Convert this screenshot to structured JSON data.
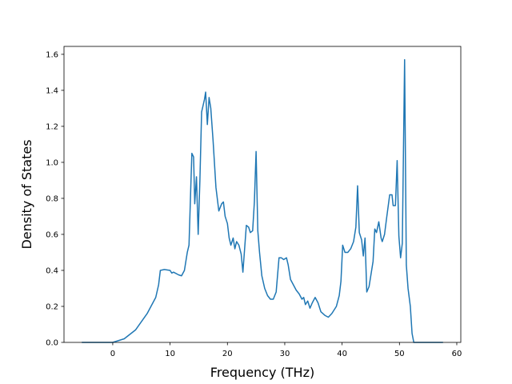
{
  "chart_data": {
    "type": "line",
    "xlabel": "Frequency (THz)",
    "ylabel": "Density of States",
    "xlim": [
      -8.5,
      60.7
    ],
    "ylim": [
      0,
      1.644
    ],
    "xticks": [
      0,
      10,
      20,
      30,
      40,
      50,
      60
    ],
    "yticks": [
      {
        "value": 0,
        "label": "0.0"
      },
      0.2,
      0.4,
      0.6,
      0.8,
      {
        "value": 1,
        "label": "1.0"
      },
      1.2,
      1.4,
      1.6
    ],
    "series": [
      {
        "color": "#1f77b4",
        "x": [
          -5.4,
          0,
          2,
          4,
          6,
          7,
          7.5,
          8,
          8.3,
          9,
          10,
          10.3,
          10.6,
          11.5,
          12,
          12.5,
          13,
          13.3,
          13.6,
          13.8,
          14.1,
          14.3,
          14.6,
          14.9,
          15.2,
          15.5,
          16,
          16.2,
          16.5,
          16.8,
          17.1,
          17.5,
          18,
          18.5,
          19,
          19.3,
          19.6,
          20,
          20.3,
          20.6,
          21,
          21.3,
          21.6,
          22,
          22.4,
          22.7,
          23,
          23.3,
          23.7,
          24,
          24.4,
          24.7,
          25,
          25.3,
          25.6,
          26,
          26.5,
          27,
          27.5,
          28,
          28.5,
          29,
          29.4,
          29.8,
          30.3,
          30.6,
          31,
          31.5,
          32,
          32.5,
          33,
          33.3,
          33.6,
          34,
          34.4,
          34.8,
          35.3,
          35.8,
          36.3,
          37,
          37.6,
          38.2,
          38.6,
          39,
          39.5,
          39.8,
          40.1,
          40.5,
          41,
          41.5,
          42,
          42.4,
          42.7,
          43,
          43.4,
          43.7,
          44,
          44.3,
          44.7,
          45,
          45.4,
          45.7,
          46,
          46.4,
          46.8,
          47,
          47.4,
          47.8,
          48.3,
          48.7,
          48.9,
          49.3,
          49.6,
          49.9,
          50.2,
          50.5,
          50.9,
          51.2,
          51.5,
          51.9,
          52.2,
          52.5,
          57.6
        ],
        "values": [
          0,
          0,
          0.02,
          0.07,
          0.16,
          0.22,
          0.25,
          0.32,
          0.4,
          0.405,
          0.4,
          0.385,
          0.39,
          0.375,
          0.37,
          0.4,
          0.5,
          0.54,
          0.85,
          1.05,
          1.03,
          0.77,
          0.92,
          0.6,
          0.9,
          1.28,
          1.35,
          1.39,
          1.21,
          1.36,
          1.3,
          1.12,
          0.86,
          0.73,
          0.77,
          0.78,
          0.7,
          0.66,
          0.58,
          0.54,
          0.58,
          0.52,
          0.56,
          0.54,
          0.49,
          0.39,
          0.52,
          0.65,
          0.64,
          0.61,
          0.62,
          0.78,
          1.06,
          0.62,
          0.5,
          0.37,
          0.3,
          0.26,
          0.24,
          0.24,
          0.28,
          0.47,
          0.47,
          0.46,
          0.47,
          0.43,
          0.35,
          0.32,
          0.29,
          0.27,
          0.24,
          0.25,
          0.21,
          0.23,
          0.19,
          0.22,
          0.25,
          0.22,
          0.17,
          0.15,
          0.14,
          0.16,
          0.18,
          0.2,
          0.26,
          0.34,
          0.54,
          0.5,
          0.5,
          0.52,
          0.56,
          0.64,
          0.87,
          0.61,
          0.57,
          0.48,
          0.58,
          0.28,
          0.31,
          0.37,
          0.45,
          0.63,
          0.61,
          0.67,
          0.58,
          0.56,
          0.6,
          0.7,
          0.82,
          0.82,
          0.76,
          0.76,
          1.01,
          0.59,
          0.47,
          0.55,
          1.57,
          0.43,
          0.3,
          0.2,
          0.05,
          0,
          0
        ]
      }
    ]
  }
}
